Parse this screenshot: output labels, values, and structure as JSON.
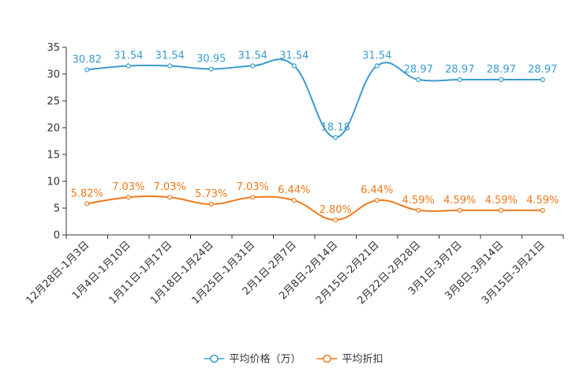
{
  "chart_data": {
    "type": "line",
    "title": "",
    "xlabel": "",
    "ylabel": "",
    "ylim": [
      0,
      35
    ],
    "yticks": [
      0,
      5,
      10,
      15,
      20,
      25,
      30,
      35
    ],
    "grid": false,
    "legend_position": "bottom-center",
    "categories": [
      "12月28日-1月3日",
      "1月4日-1月10日",
      "1月11日-1月17日",
      "1月18日-1月24日",
      "1月25日-1月31日",
      "2月1日-2月7日",
      "2月8日-2月14日",
      "2月15日-2月21日",
      "2月22日-2月28日",
      "3月1日-3月7日",
      "3月8日-3月14日",
      "3月15日-3月21日"
    ],
    "series": [
      {
        "name": "平均价格（万）",
        "color": "#3a9bce",
        "values": [
          30.82,
          31.54,
          31.54,
          30.95,
          31.54,
          31.54,
          18.18,
          31.54,
          28.97,
          28.97,
          28.97,
          28.97
        ],
        "labels": [
          "30.82",
          "31.54",
          "31.54",
          "30.95",
          "31.54",
          "31.54",
          "18.18",
          "31.54",
          "28.97",
          "28.97",
          "28.97",
          "28.97"
        ]
      },
      {
        "name": "平均折扣",
        "color": "#f07818",
        "values": [
          5.82,
          7.03,
          7.03,
          5.73,
          7.03,
          6.44,
          2.8,
          6.44,
          4.59,
          4.59,
          4.59,
          4.59
        ],
        "labels": [
          "5.82%",
          "7.03%",
          "7.03%",
          "5.73%",
          "7.03%",
          "6.44%",
          "2.80%",
          "6.44%",
          "4.59%",
          "4.59%",
          "4.59%",
          "4.59%"
        ]
      }
    ]
  }
}
